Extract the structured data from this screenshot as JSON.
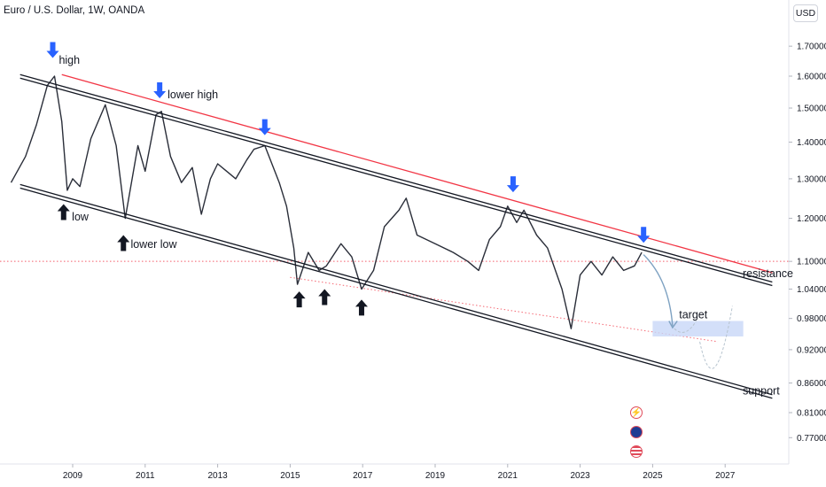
{
  "header": {
    "title": "Euro / U.S. Dollar, 1W, OANDA",
    "currency": "USD"
  },
  "chart_data": {
    "type": "line",
    "x_ticks": [
      "2009",
      "2011",
      "2013",
      "2015",
      "2017",
      "2019",
      "2021",
      "2023",
      "2025",
      "2027"
    ],
    "y_ticks": [
      "1.70000",
      "1.60000",
      "1.50000",
      "1.40000",
      "1.30000",
      "1.20000",
      "1.10000",
      "1.04000",
      "0.98000",
      "0.92000",
      "0.86000",
      "0.81000",
      "0.77000"
    ],
    "series": [
      {
        "values": [
          [
            2007.3,
            1.29
          ],
          [
            2007.7,
            1.36
          ],
          [
            2008.0,
            1.45
          ],
          [
            2008.3,
            1.57
          ],
          [
            2008.5,
            1.6
          ],
          [
            2008.7,
            1.46
          ],
          [
            2008.85,
            1.27
          ],
          [
            2009.0,
            1.3
          ],
          [
            2009.2,
            1.28
          ],
          [
            2009.5,
            1.41
          ],
          [
            2009.9,
            1.51
          ],
          [
            2010.2,
            1.39
          ],
          [
            2010.45,
            1.2
          ],
          [
            2010.8,
            1.39
          ],
          [
            2011.0,
            1.32
          ],
          [
            2011.3,
            1.48
          ],
          [
            2011.45,
            1.49
          ],
          [
            2011.7,
            1.36
          ],
          [
            2012.0,
            1.29
          ],
          [
            2012.3,
            1.33
          ],
          [
            2012.55,
            1.21
          ],
          [
            2012.8,
            1.3
          ],
          [
            2013.0,
            1.34
          ],
          [
            2013.5,
            1.3
          ],
          [
            2013.8,
            1.35
          ],
          [
            2014.0,
            1.38
          ],
          [
            2014.3,
            1.39
          ],
          [
            2014.7,
            1.29
          ],
          [
            2014.9,
            1.23
          ],
          [
            2015.1,
            1.13
          ],
          [
            2015.2,
            1.05
          ],
          [
            2015.5,
            1.12
          ],
          [
            2015.8,
            1.08
          ],
          [
            2016.0,
            1.09
          ],
          [
            2016.4,
            1.14
          ],
          [
            2016.7,
            1.11
          ],
          [
            2016.97,
            1.04
          ],
          [
            2017.3,
            1.08
          ],
          [
            2017.6,
            1.18
          ],
          [
            2018.0,
            1.22
          ],
          [
            2018.2,
            1.25
          ],
          [
            2018.5,
            1.16
          ],
          [
            2019.0,
            1.14
          ],
          [
            2019.5,
            1.12
          ],
          [
            2019.9,
            1.1
          ],
          [
            2020.2,
            1.08
          ],
          [
            2020.5,
            1.15
          ],
          [
            2020.8,
            1.18
          ],
          [
            2021.0,
            1.23
          ],
          [
            2021.25,
            1.19
          ],
          [
            2021.45,
            1.22
          ],
          [
            2021.8,
            1.16
          ],
          [
            2022.1,
            1.13
          ],
          [
            2022.5,
            1.04
          ],
          [
            2022.75,
            0.96
          ],
          [
            2023.0,
            1.07
          ],
          [
            2023.3,
            1.1
          ],
          [
            2023.6,
            1.07
          ],
          [
            2023.9,
            1.11
          ],
          [
            2024.2,
            1.08
          ],
          [
            2024.5,
            1.09
          ],
          [
            2024.7,
            1.12
          ]
        ]
      }
    ],
    "ylim": [
      0.74,
      1.78
    ],
    "xlim": [
      2007.3,
      2028.7
    ],
    "y_scale": "log",
    "grid": false,
    "reference_price": 1.1,
    "colors": {
      "price": "#2a2e39",
      "resistance": "#f23645",
      "channel": "#131722",
      "arrow_up": "#131722",
      "arrow_down": "#2962ff",
      "target_zone": "#c8d7f8",
      "projection": "#9db4c8",
      "reference": "#f23645"
    },
    "annotations": {
      "high": "high",
      "lower_high": "lower high",
      "low": "low",
      "lower_low": "lower low",
      "resistance": "resistance",
      "support": "support",
      "target": "target"
    }
  },
  "events": {
    "icons": [
      "flash-icon",
      "eu-flag-icon",
      "us-flag-icon"
    ],
    "flash_glyph": "⚡"
  }
}
